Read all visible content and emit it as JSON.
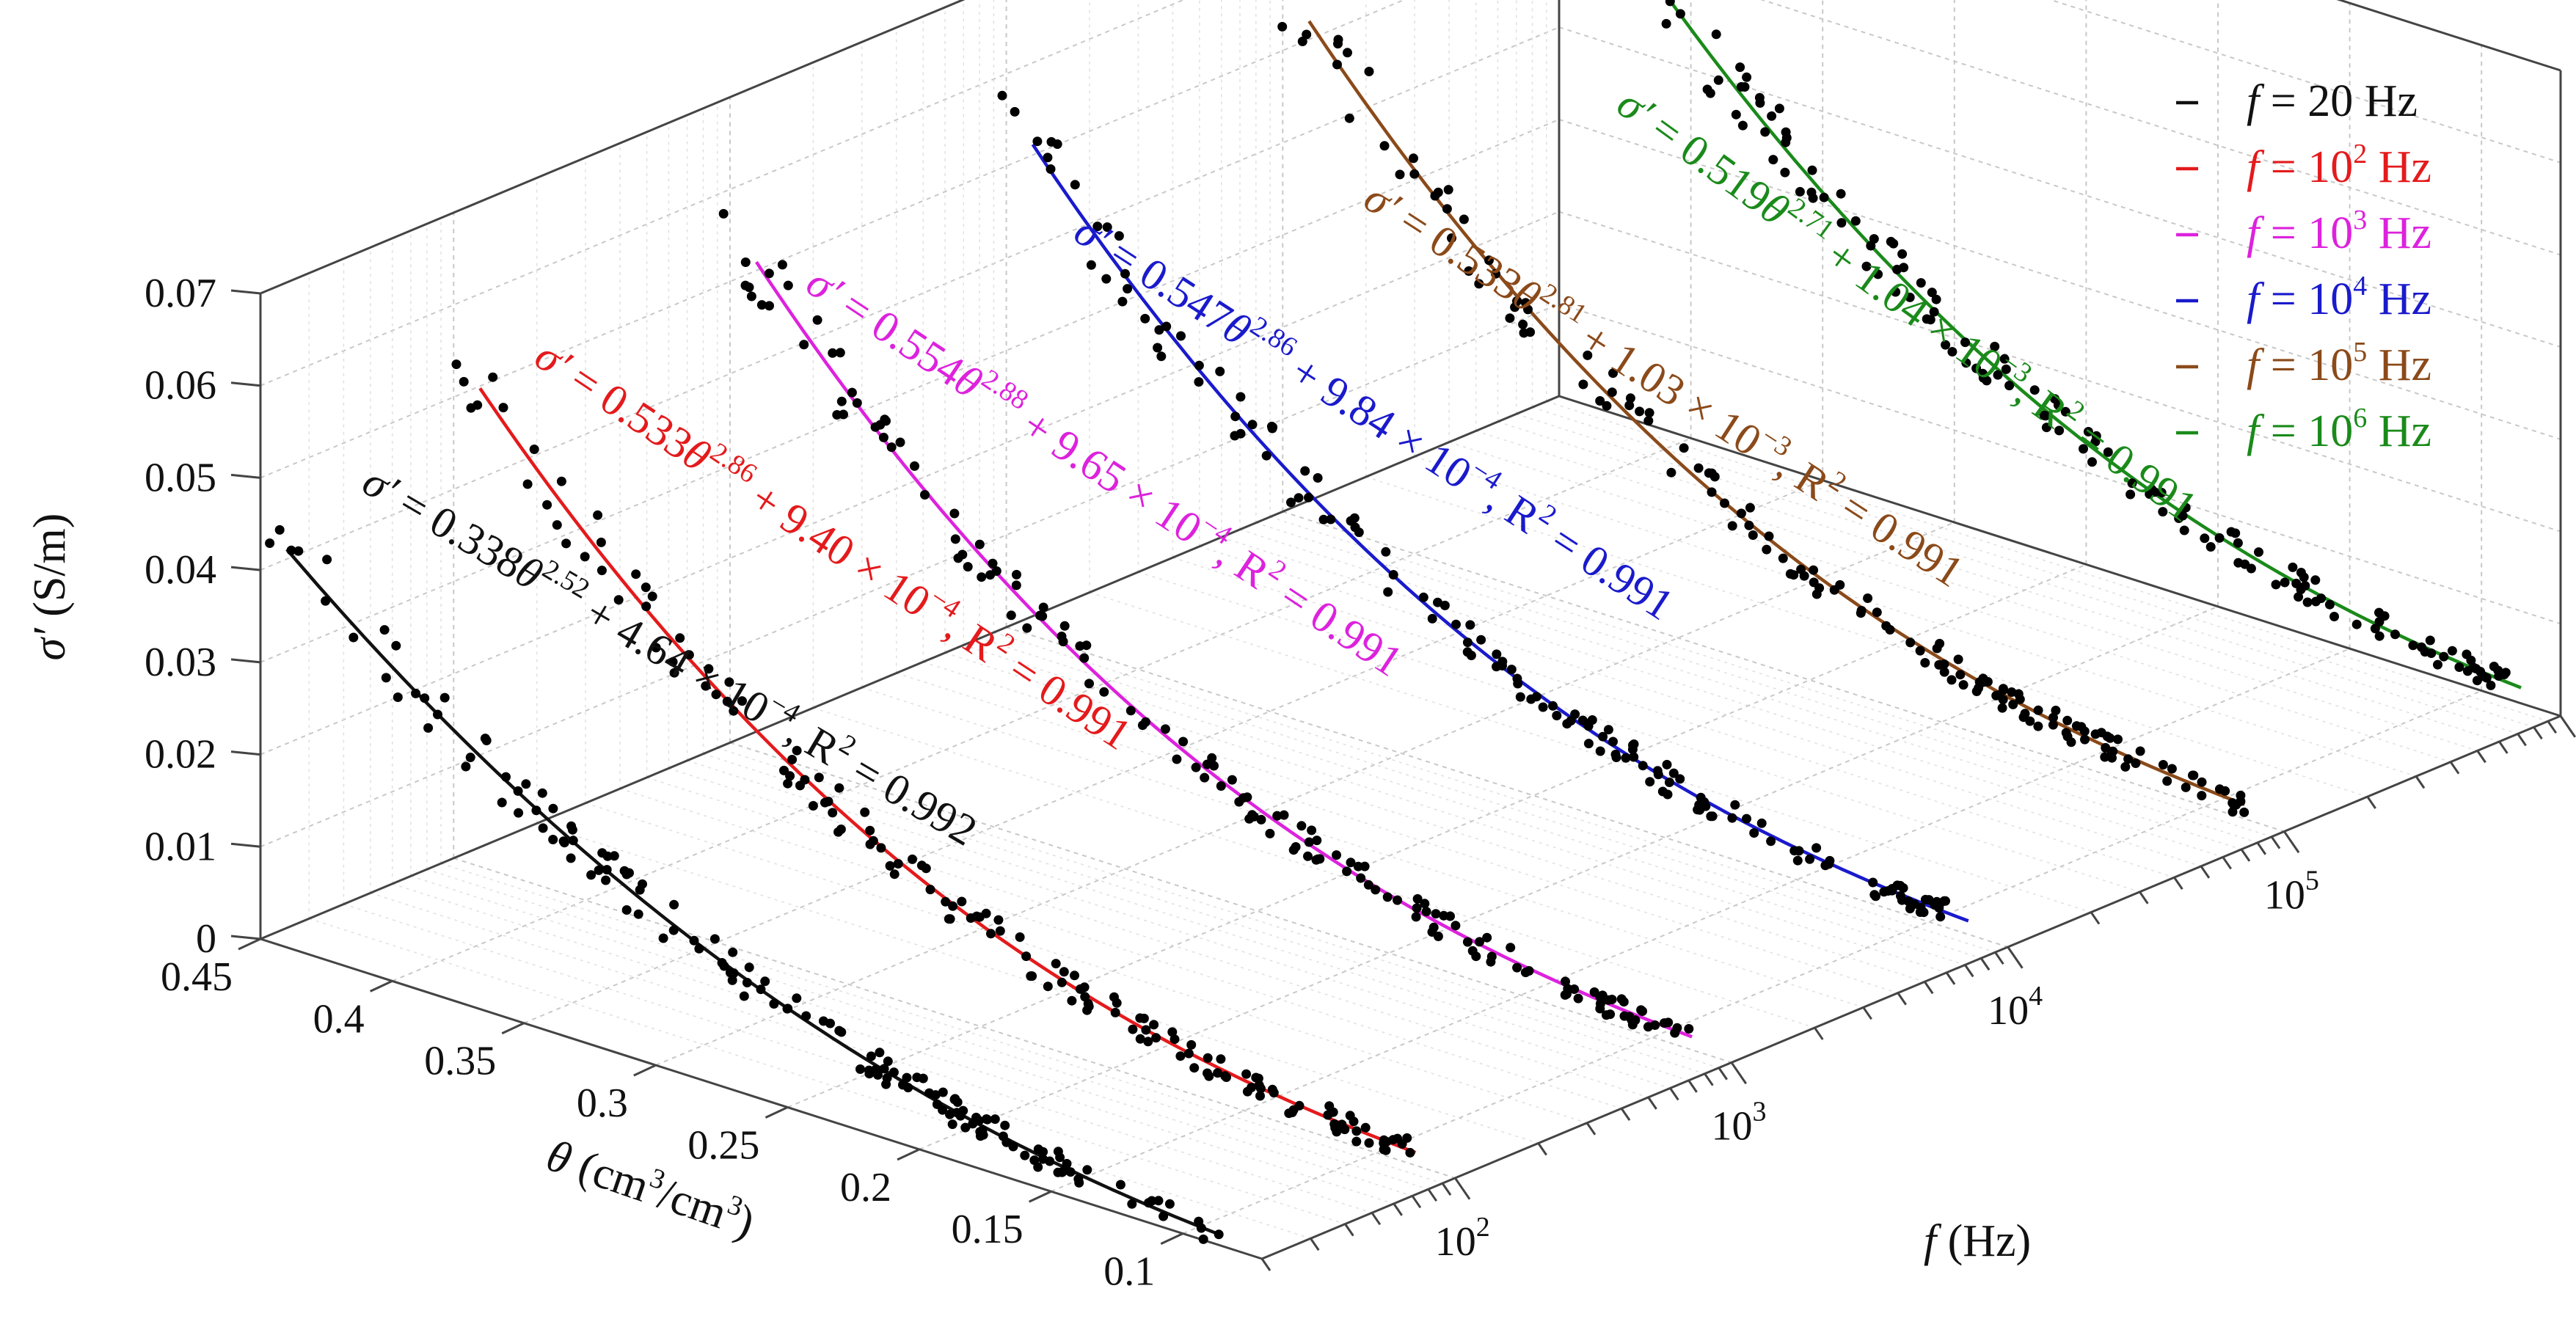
{
  "chart_data": {
    "type": "scatter",
    "projection": "3d",
    "axes": {
      "z": {
        "label_symbol": "σ′",
        "label_unit": "(S/m)",
        "range": [
          0,
          0.07
        ],
        "ticks": [
          "0.07",
          "0.06",
          "0.05",
          "0.04",
          "0.03",
          "0.02",
          "0.01",
          "0"
        ]
      },
      "x": {
        "label_symbol": "θ",
        "label_unit": "(cm",
        "label_unit_sup1": "3",
        "label_unit_mid": "/cm",
        "label_unit_sup2": "3",
        "label_unit_end": ")",
        "range": [
          0.45,
          0.07
        ],
        "ticks": [
          "0.45",
          "0.4",
          "0.35",
          "0.3",
          "0.25",
          "0.2",
          "0.15",
          "0.1"
        ]
      },
      "y": {
        "label_symbol": "f",
        "label_unit": "(Hz)",
        "scale": "log",
        "range": [
          20,
          1000000
        ],
        "tick_base": "10",
        "ticks_exp": [
          "2",
          "3",
          "4",
          "5"
        ]
      }
    },
    "grid": true,
    "legend": {
      "placement": "top-right",
      "entries": [
        {
          "prefix": "f",
          "text": " = 20  Hz",
          "base": "",
          "exp": "",
          "unit": "",
          "color": "#111111"
        },
        {
          "prefix": "f",
          "text": " = 10",
          "base": "",
          "exp": "2",
          "unit": " Hz",
          "color": "#e41a1c"
        },
        {
          "prefix": "f",
          "text": " = 10",
          "base": "",
          "exp": "3",
          "unit": " Hz",
          "color": "#dd22dd"
        },
        {
          "prefix": "f",
          "text": " = 10",
          "base": "",
          "exp": "4",
          "unit": " Hz",
          "color": "#1a1acc"
        },
        {
          "prefix": "f",
          "text": " = 10",
          "base": "",
          "exp": "5",
          "unit": " Hz",
          "color": "#8b4a1a"
        },
        {
          "prefix": "f",
          "text": " = 10",
          "base": "",
          "exp": "6",
          "unit": " Hz",
          "color": "#1a8a1a"
        }
      ]
    },
    "series": [
      {
        "f": 20,
        "a": 0.338,
        "b": 2.52,
        "c": 0.000464,
        "r2": "0.992",
        "color": "#111111",
        "eq": {
          "s": "σ′",
          "a": " = 0.338",
          "t": "θ",
          "b": "2.52",
          "c": " + 4.64 × 10",
          "ce": "−4",
          "r": ", R",
          "re": "2",
          "rv": " = 0.992"
        }
      },
      {
        "f": 100,
        "a": 0.533,
        "b": 2.86,
        "c": 0.00094,
        "r2": "0.991",
        "color": "#e41a1c",
        "eq": {
          "s": "σ′",
          "a": " = 0.533",
          "t": "θ",
          "b": "2.86",
          "c": " + 9.40 × 10",
          "ce": "−4",
          "r": ", R",
          "re": "2",
          "rv": " = 0.991"
        }
      },
      {
        "f": 1000,
        "a": 0.554,
        "b": 2.88,
        "c": 0.000965,
        "r2": "0.991",
        "color": "#dd22dd",
        "eq": {
          "s": "σ′",
          "a": " = 0.554",
          "t": "θ",
          "b": "2.88",
          "c": " + 9.65 × 10",
          "ce": "−4",
          "r": ", R",
          "re": "2",
          "rv": " = 0.991"
        }
      },
      {
        "f": 10000,
        "a": 0.547,
        "b": 2.86,
        "c": 0.000984,
        "r2": "0.991",
        "color": "#1a1acc",
        "eq": {
          "s": "σ′",
          "a": " = 0.547",
          "t": "θ",
          "b": "2.86",
          "c": " + 9.84 × 10",
          "ce": "−4",
          "r": ", R",
          "re": "2",
          "rv": " = 0.991"
        }
      },
      {
        "f": 100000,
        "a": 0.533,
        "b": 2.81,
        "c": 0.00103,
        "r2": "0.991",
        "color": "#8b4a1a",
        "eq": {
          "s": "σ′",
          "a": " = 0.533",
          "t": "θ",
          "b": "2.81",
          "c": " + 1.03 × 10",
          "ce": "−3",
          "r": ", R",
          "re": "2",
          "rv": " = 0.991"
        }
      },
      {
        "f": 1000000,
        "a": 0.519,
        "b": 2.71,
        "c": 0.00104,
        "r2": "0.991",
        "color": "#1a8a1a",
        "eq": {
          "s": "σ′",
          "a": " = 0.519",
          "t": "θ",
          "b": "2.71",
          "c": " + 1.04 × 10",
          "ce": "−3",
          "r": ", R",
          "re": "2",
          "rv": " = 0.991"
        }
      }
    ],
    "points_color": "#000000"
  }
}
